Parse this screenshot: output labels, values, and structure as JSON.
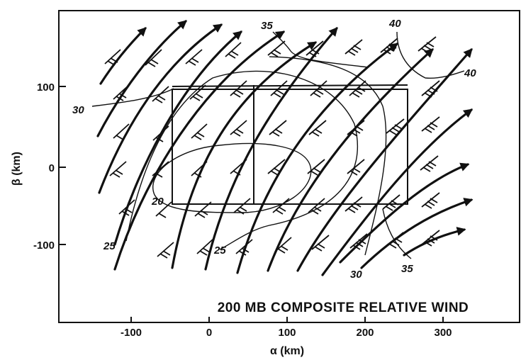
{
  "figure": {
    "title": "200 MB COMPOSITE RELATIVE WIND",
    "x_axis": {
      "label": "α (km)",
      "ticks": [
        "-100",
        "0",
        "100",
        "200",
        "300"
      ]
    },
    "y_axis": {
      "label": "β (km)",
      "ticks": [
        "100",
        "0",
        "-100"
      ]
    },
    "isotach_labels": [
      "35",
      "40",
      "40",
      "30",
      "20",
      "25",
      "25",
      "30",
      "35"
    ],
    "colors": {
      "ink": "#111111",
      "background": "#ffffff"
    }
  }
}
